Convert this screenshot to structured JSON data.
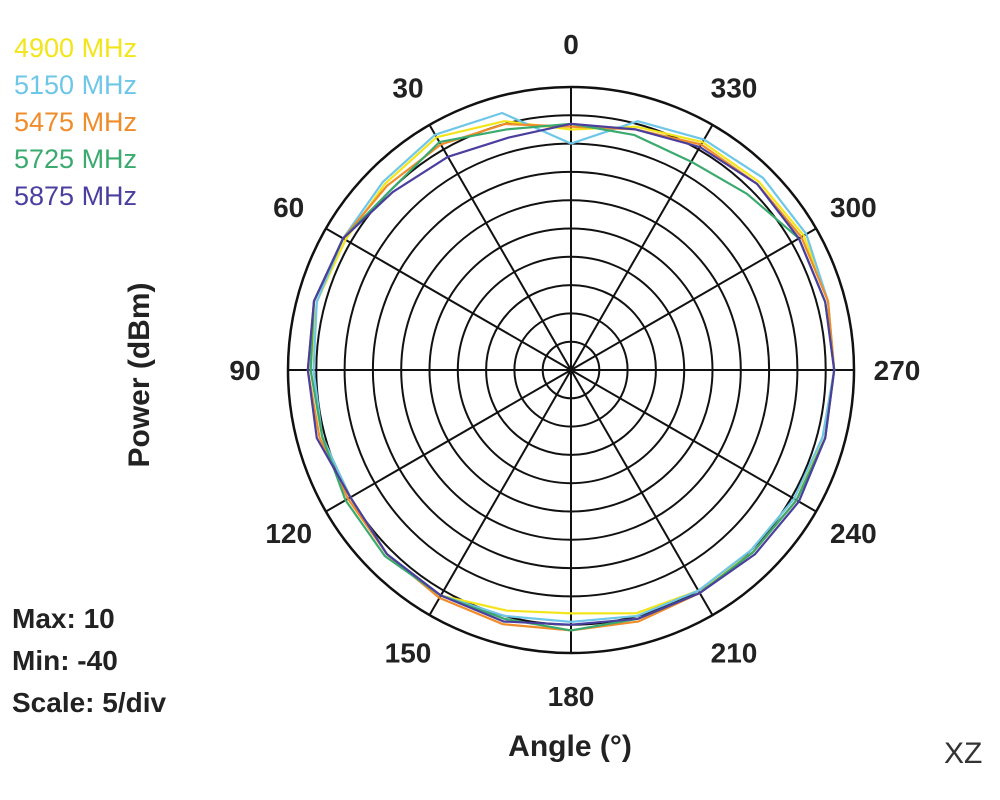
{
  "chart_data": {
    "type": "polar-line",
    "xlabel": "Angle (°)",
    "ylabel": "Power (dBm)",
    "rlim": [
      -40,
      10
    ],
    "scale_per_div": 5,
    "angle_ticks": [
      0,
      30,
      60,
      90,
      120,
      150,
      180,
      210,
      240,
      270,
      300,
      330
    ],
    "angle_direction": "counter-clockwise from top",
    "grid": true,
    "legend_position": "top-left",
    "stats": {
      "max": "Max: 10",
      "min": "Min: -40",
      "scale": "Scale: 5/div"
    },
    "plane_label": "XZ",
    "angles": [
      0,
      15,
      30,
      45,
      60,
      75,
      90,
      105,
      120,
      135,
      150,
      165,
      180,
      195,
      210,
      225,
      240,
      255,
      270,
      285,
      300,
      315,
      330,
      345
    ],
    "series": [
      {
        "name": "4900 MHz",
        "color": "#f2e51a",
        "values": [
          2.5,
          5.5,
          7.5,
          6.5,
          6,
          6.5,
          6,
          5.5,
          5,
          6,
          6,
          4,
          3,
          4.5,
          5,
          5.5,
          6,
          6,
          6.5,
          7,
          7.5,
          7,
          6.5,
          4.5
        ]
      },
      {
        "name": "5150 MHz",
        "color": "#6ec6e8",
        "values": [
          0,
          7,
          8,
          7,
          6.5,
          6.5,
          5.5,
          5.5,
          5,
          6,
          6,
          5,
          4.5,
          5,
          5,
          5,
          5.5,
          6,
          6.5,
          7,
          8,
          8,
          7,
          5.5
        ]
      },
      {
        "name": "5475 MHz",
        "color": "#f08c2a",
        "values": [
          3,
          5,
          6,
          6,
          6.5,
          7,
          6.5,
          6,
          5.5,
          6,
          6.5,
          6.5,
          6,
          6,
          5.5,
          5.5,
          6,
          6.5,
          6.5,
          7,
          7,
          6.5,
          6,
          4
        ]
      },
      {
        "name": "5725 MHz",
        "color": "#3aaa6e",
        "values": [
          3.5,
          4,
          6.5,
          5,
          6.5,
          7,
          6,
          5.5,
          6,
          6.5,
          6,
          5.5,
          6,
          5.5,
          5.5,
          5.5,
          6,
          6.5,
          6.5,
          6.5,
          6.5,
          4,
          2.5,
          3
        ]
      },
      {
        "name": "5875 MHz",
        "color": "#4a3f9e",
        "values": [
          3.5,
          2.5,
          3.5,
          4.5,
          6.5,
          7,
          6.5,
          6.5,
          5,
          6,
          6,
          6,
          5,
          5.5,
          5.5,
          6,
          6.5,
          6.5,
          6.5,
          6.5,
          6.5,
          6.5,
          5.5,
          4
        ]
      }
    ]
  }
}
